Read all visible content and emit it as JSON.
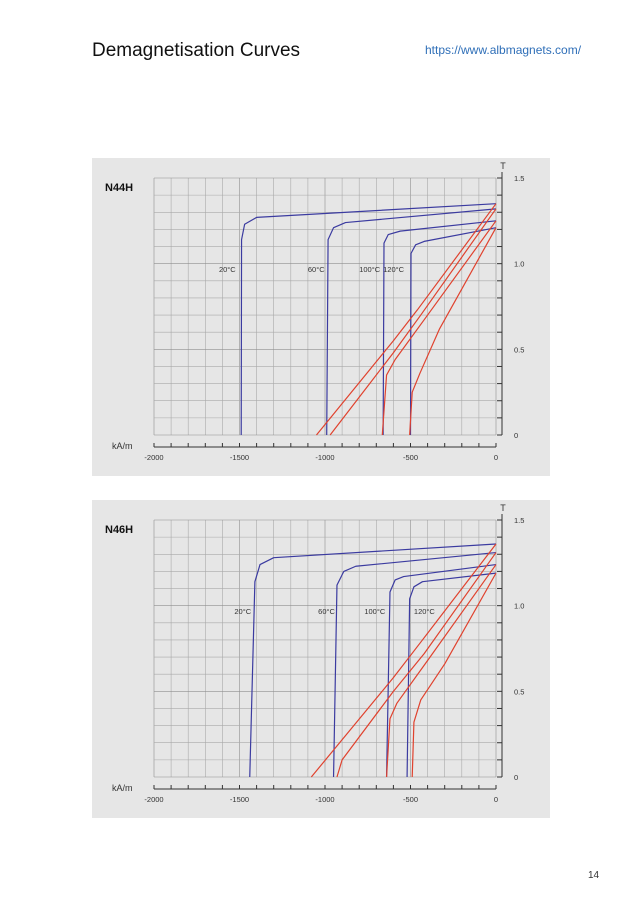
{
  "header": {
    "title": "Demagnetisation Curves",
    "link": "https://www.albmagnets.com/"
  },
  "footer": {
    "page_number": "14"
  },
  "colors": {
    "bh_curve": "#3b3ba0",
    "j_line": "#e0422e",
    "panel_bg": "#e6e6e6"
  },
  "chart_data": [
    {
      "type": "line",
      "title": "N44H",
      "xlabel": "kA/m",
      "ylabel": "T",
      "xlim": [
        -2000,
        0
      ],
      "ylim": [
        0,
        1.5
      ],
      "xticks": [
        "-2000",
        "-1500",
        "-1000",
        "-500",
        "0"
      ],
      "yticks": [
        "0",
        "0.5",
        "1.0",
        "1.5"
      ],
      "grid": true,
      "temperature_labels": [
        {
          "text": "20°C",
          "x": -1620,
          "y": 0.95
        },
        {
          "text": "60°C",
          "x": -1100,
          "y": 0.95
        },
        {
          "text": "100°C",
          "x": -800,
          "y": 0.95
        },
        {
          "text": "120°C",
          "x": -660,
          "y": 0.95
        }
      ],
      "series": [
        {
          "temp": "20°C",
          "curve": "bh",
          "points": [
            [
              -1490,
              0
            ],
            [
              -1488,
              1.14
            ],
            [
              -1470,
              1.23
            ],
            [
              -1400,
              1.27
            ],
            [
              0,
              1.35
            ]
          ]
        },
        {
          "temp": "60°C",
          "curve": "bh",
          "points": [
            [
              -990,
              0
            ],
            [
              -982,
              1.14
            ],
            [
              -950,
              1.21
            ],
            [
              -880,
              1.24
            ],
            [
              0,
              1.32
            ]
          ]
        },
        {
          "temp": "100°C",
          "curve": "bh",
          "points": [
            [
              -660,
              0
            ],
            [
              -655,
              1.12
            ],
            [
              -630,
              1.17
            ],
            [
              -560,
              1.19
            ],
            [
              0,
              1.25
            ]
          ]
        },
        {
          "temp": "120°C",
          "curve": "bh",
          "points": [
            [
              -500,
              0
            ],
            [
              -497,
              1.06
            ],
            [
              -470,
              1.11
            ],
            [
              -420,
              1.13
            ],
            [
              0,
              1.21
            ]
          ]
        },
        {
          "temp": "20°C",
          "curve": "j",
          "points": [
            [
              -1050,
              0
            ],
            [
              -600,
              0.55
            ],
            [
              -460,
              0.73
            ],
            [
              0,
              1.35
            ]
          ]
        },
        {
          "temp": "60°C",
          "curve": "j",
          "points": [
            [
              -970,
              0
            ],
            [
              -600,
              0.48
            ],
            [
              -440,
              0.7
            ],
            [
              0,
              1.32
            ]
          ]
        },
        {
          "temp": "100°C",
          "curve": "j",
          "points": [
            [
              -665,
              0
            ],
            [
              -640,
              0.35
            ],
            [
              -590,
              0.44
            ],
            [
              -400,
              0.7
            ],
            [
              0,
              1.25
            ]
          ]
        },
        {
          "temp": "120°C",
          "curve": "j",
          "points": [
            [
              -505,
              0
            ],
            [
              -490,
              0.25
            ],
            [
              -445,
              0.36
            ],
            [
              -330,
              0.62
            ],
            [
              0,
              1.21
            ]
          ]
        }
      ]
    },
    {
      "type": "line",
      "title": "N46H",
      "xlabel": "kA/m",
      "ylabel": "T",
      "xlim": [
        -2000,
        0
      ],
      "ylim": [
        0,
        1.5
      ],
      "xticks": [
        "-2000",
        "-1500",
        "-1000",
        "-500",
        "0"
      ],
      "yticks": [
        "0",
        "0.5",
        "1.0",
        "1.5"
      ],
      "grid": true,
      "temperature_labels": [
        {
          "text": "20°C",
          "x": -1530,
          "y": 0.95
        },
        {
          "text": "60°C",
          "x": -1040,
          "y": 0.95
        },
        {
          "text": "100°C",
          "x": -770,
          "y": 0.95
        },
        {
          "text": "120°C",
          "x": -480,
          "y": 0.95
        }
      ],
      "series": [
        {
          "temp": "20°C",
          "curve": "bh",
          "points": [
            [
              -1440,
              0
            ],
            [
              -1410,
              1.14
            ],
            [
              -1380,
              1.24
            ],
            [
              -1300,
              1.28
            ],
            [
              0,
              1.36
            ]
          ]
        },
        {
          "temp": "60°C",
          "curve": "bh",
          "points": [
            [
              -950,
              0
            ],
            [
              -930,
              1.12
            ],
            [
              -890,
              1.2
            ],
            [
              -820,
              1.23
            ],
            [
              0,
              1.31
            ]
          ]
        },
        {
          "temp": "100°C",
          "curve": "bh",
          "points": [
            [
              -640,
              0
            ],
            [
              -620,
              1.08
            ],
            [
              -590,
              1.15
            ],
            [
              -540,
              1.17
            ],
            [
              0,
              1.24
            ]
          ]
        },
        {
          "temp": "120°C",
          "curve": "bh",
          "points": [
            [
              -520,
              0
            ],
            [
              -505,
              1.04
            ],
            [
              -480,
              1.11
            ],
            [
              -430,
              1.14
            ],
            [
              0,
              1.19
            ]
          ]
        },
        {
          "temp": "20°C",
          "curve": "j",
          "points": [
            [
              -1080,
              0
            ],
            [
              -600,
              0.58
            ],
            [
              -430,
              0.8
            ],
            [
              0,
              1.36
            ]
          ]
        },
        {
          "temp": "60°C",
          "curve": "j",
          "points": [
            [
              -930,
              0
            ],
            [
              -900,
              0.1
            ],
            [
              -600,
              0.5
            ],
            [
              -420,
              0.72
            ],
            [
              0,
              1.31
            ]
          ]
        },
        {
          "temp": "100°C",
          "curve": "j",
          "points": [
            [
              -640,
              0
            ],
            [
              -620,
              0.34
            ],
            [
              -580,
              0.43
            ],
            [
              -400,
              0.68
            ],
            [
              0,
              1.24
            ]
          ]
        },
        {
          "temp": "120°C",
          "curve": "j",
          "points": [
            [
              -490,
              0
            ],
            [
              -480,
              0.32
            ],
            [
              -440,
              0.45
            ],
            [
              -300,
              0.66
            ],
            [
              0,
              1.19
            ]
          ]
        }
      ]
    }
  ]
}
